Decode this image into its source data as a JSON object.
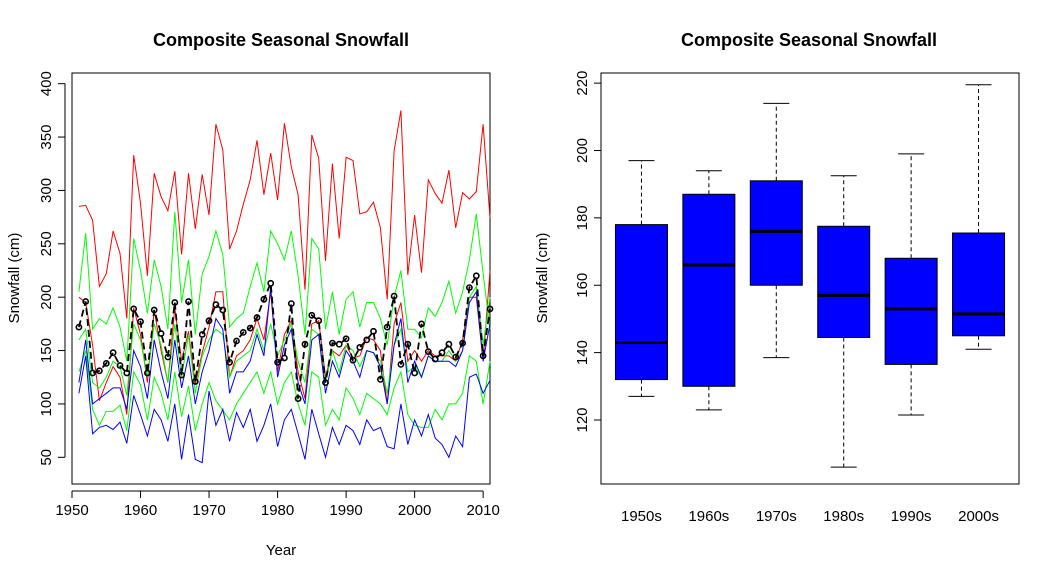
{
  "chart_data": [
    {
      "type": "line",
      "title": "Composite Seasonal Snowfall",
      "xlabel": "Year",
      "ylabel": "Snowfall (cm)",
      "xlim": [
        1950,
        2011
      ],
      "ylim": [
        25,
        410
      ],
      "x_ticks": [
        1950,
        1960,
        1970,
        1980,
        1990,
        2000,
        2010
      ],
      "y_ticks": [
        50,
        100,
        150,
        200,
        250,
        300,
        350,
        400
      ],
      "x": [
        1951,
        1952,
        1953,
        1954,
        1955,
        1956,
        1957,
        1958,
        1959,
        1960,
        1961,
        1962,
        1963,
        1964,
        1965,
        1966,
        1967,
        1968,
        1969,
        1970,
        1971,
        1972,
        1973,
        1974,
        1975,
        1976,
        1977,
        1978,
        1979,
        1980,
        1981,
        1982,
        1983,
        1984,
        1985,
        1986,
        1987,
        1988,
        1989,
        1990,
        1991,
        1992,
        1993,
        1994,
        1995,
        1996,
        1997,
        1998,
        1999,
        2000,
        2001,
        2002,
        2003,
        2004,
        2005,
        2006,
        2007,
        2008,
        2009,
        2010,
        2011
      ],
      "series": [
        {
          "color": "#ff0000",
          "style": "line",
          "values": [
            285,
            286,
            272,
            210,
            222,
            262,
            241,
            180,
            333,
            288,
            220,
            316,
            294,
            281,
            318,
            240,
            316,
            264,
            315,
            277,
            362,
            338,
            245,
            262,
            287,
            310,
            347,
            296,
            335,
            291,
            363,
            322,
            296,
            207,
            352,
            330,
            234,
            325,
            255,
            331,
            328,
            278,
            280,
            289,
            265,
            198,
            337,
            375,
            221,
            277,
            223,
            310,
            297,
            288,
            319,
            265,
            298,
            292,
            299,
            362,
            274
          ]
        },
        {
          "color": "#ff0000",
          "style": "line",
          "values": [
            200,
            195,
            155,
            103,
            120,
            135,
            125,
            90,
            190,
            165,
            120,
            188,
            150,
            120,
            190,
            140,
            168,
            118,
            148,
            172,
            205,
            205,
            125,
            145,
            150,
            160,
            180,
            160,
            205,
            130,
            165,
            178,
            130,
            105,
            175,
            178,
            125,
            150,
            145,
            155,
            143,
            145,
            162,
            160,
            150,
            100,
            175,
            195,
            140,
            150,
            140,
            150,
            145,
            145,
            145,
            140,
            160,
            200,
            200,
            140,
            225
          ]
        },
        {
          "color": "#00ff00",
          "style": "line",
          "values": [
            205,
            260,
            170,
            180,
            175,
            190,
            172,
            140,
            255,
            225,
            185,
            235,
            210,
            170,
            280,
            195,
            235,
            165,
            222,
            238,
            262,
            240,
            172,
            180,
            185,
            210,
            232,
            205,
            262,
            250,
            235,
            262,
            220,
            165,
            255,
            245,
            170,
            205,
            165,
            198,
            205,
            172,
            195,
            195,
            180,
            155,
            200,
            225,
            170,
            170,
            162,
            190,
            182,
            195,
            215,
            185,
            205,
            235,
            278,
            222,
            170
          ]
        },
        {
          "color": "#00ff00",
          "style": "line",
          "values": [
            160,
            170,
            120,
            115,
            125,
            140,
            135,
            108,
            175,
            160,
            125,
            175,
            155,
            120,
            175,
            125,
            165,
            110,
            145,
            160,
            170,
            165,
            125,
            140,
            145,
            150,
            170,
            150,
            175,
            145,
            160,
            175,
            140,
            120,
            170,
            165,
            120,
            150,
            130,
            155,
            150,
            135,
            150,
            148,
            140,
            110,
            155,
            170,
            130,
            135,
            125,
            145,
            140,
            140,
            150,
            140,
            150,
            200,
            210,
            155,
            200
          ]
        },
        {
          "color": "#00ff00",
          "style": "line",
          "values": [
            130,
            150,
            95,
            80,
            93,
            93,
            99,
            75,
            130,
            118,
            85,
            125,
            110,
            85,
            130,
            88,
            117,
            75,
            100,
            120,
            103,
            94,
            85,
            100,
            110,
            120,
            130,
            110,
            130,
            100,
            120,
            130,
            100,
            80,
            130,
            125,
            80,
            95,
            85,
            115,
            105,
            90,
            110,
            105,
            100,
            90,
            115,
            130,
            90,
            80,
            78,
            78,
            95,
            85,
            100,
            100,
            110,
            145,
            140,
            100,
            140
          ]
        },
        {
          "color": "#0000ff",
          "style": "line",
          "values": [
            110,
            145,
            72,
            78,
            80,
            76,
            83,
            63,
            108,
            90,
            70,
            95,
            85,
            65,
            100,
            48,
            90,
            48,
            45,
            112,
            80,
            95,
            65,
            92,
            78,
            95,
            65,
            80,
            100,
            60,
            85,
            95,
            72,
            48,
            95,
            72,
            50,
            78,
            62,
            80,
            75,
            62,
            85,
            75,
            78,
            60,
            58,
            100,
            62,
            85,
            70,
            90,
            68,
            62,
            50,
            70,
            60,
            125,
            128,
            110,
            122
          ]
        },
        {
          "color": "#0000ff",
          "style": "line",
          "values": [
            120,
            160,
            100,
            105,
            110,
            115,
            115,
            95,
            150,
            135,
            105,
            160,
            130,
            105,
            160,
            115,
            145,
            100,
            130,
            150,
            180,
            170,
            110,
            130,
            130,
            140,
            165,
            145,
            210,
            125,
            155,
            170,
            120,
            100,
            160,
            165,
            110,
            140,
            125,
            150,
            140,
            125,
            150,
            148,
            135,
            100,
            155,
            180,
            120,
            140,
            125,
            145,
            140,
            140,
            140,
            135,
            150,
            195,
            205,
            140,
            175
          ]
        },
        {
          "color": "#000000",
          "style": "dashed",
          "values": [
            172,
            196,
            129,
            131,
            138,
            148,
            136,
            129,
            189,
            177,
            129,
            188,
            166,
            144,
            195,
            127,
            196,
            121,
            165,
            178,
            193,
            188,
            139,
            159,
            167,
            171,
            181,
            198,
            213,
            139,
            143,
            194,
            105,
            156,
            183,
            178,
            120,
            157,
            156,
            161,
            141,
            153,
            160,
            168,
            123,
            172,
            201,
            137,
            156,
            129,
            175,
            149,
            142,
            148,
            156,
            144,
            157,
            209,
            220,
            145,
            189
          ]
        },
        {
          "color": "#000000",
          "style": "points",
          "values": [
            172,
            196,
            129,
            131,
            138,
            148,
            136,
            129,
            189,
            177,
            129,
            188,
            166,
            144,
            195,
            127,
            196,
            121,
            165,
            178,
            193,
            188,
            139,
            159,
            167,
            171,
            181,
            198,
            213,
            139,
            143,
            194,
            105,
            156,
            183,
            178,
            120,
            157,
            156,
            161,
            141,
            153,
            160,
            168,
            123,
            172,
            201,
            137,
            156,
            129,
            175,
            149,
            142,
            148,
            156,
            144,
            157,
            209,
            220,
            145,
            189
          ]
        }
      ]
    },
    {
      "type": "box",
      "title": "Composite Seasonal Snowfall",
      "xlabel": "",
      "ylabel": "Snowfall (cm)",
      "ylim": [
        101,
        223
      ],
      "y_ticks": [
        120,
        140,
        160,
        180,
        200,
        220
      ],
      "categories": [
        "1950s",
        "1960s",
        "1970s",
        "1980s",
        "1990s",
        "2000s"
      ],
      "fill_color": "#0000ff",
      "boxes": [
        {
          "min": 127,
          "q1": 132,
          "median": 143,
          "q3": 178,
          "max": 197
        },
        {
          "min": 123,
          "q1": 130,
          "median": 166,
          "q3": 187,
          "max": 194
        },
        {
          "min": 138.5,
          "q1": 160,
          "median": 176,
          "q3": 191,
          "max": 214
        },
        {
          "min": 106,
          "q1": 144.5,
          "median": 157,
          "q3": 177.5,
          "max": 192.5
        },
        {
          "min": 121.5,
          "q1": 136.5,
          "median": 153,
          "q3": 168,
          "max": 199
        },
        {
          "min": 141,
          "q1": 145,
          "median": 151.5,
          "q3": 175.5,
          "max": 219.5
        }
      ]
    }
  ]
}
